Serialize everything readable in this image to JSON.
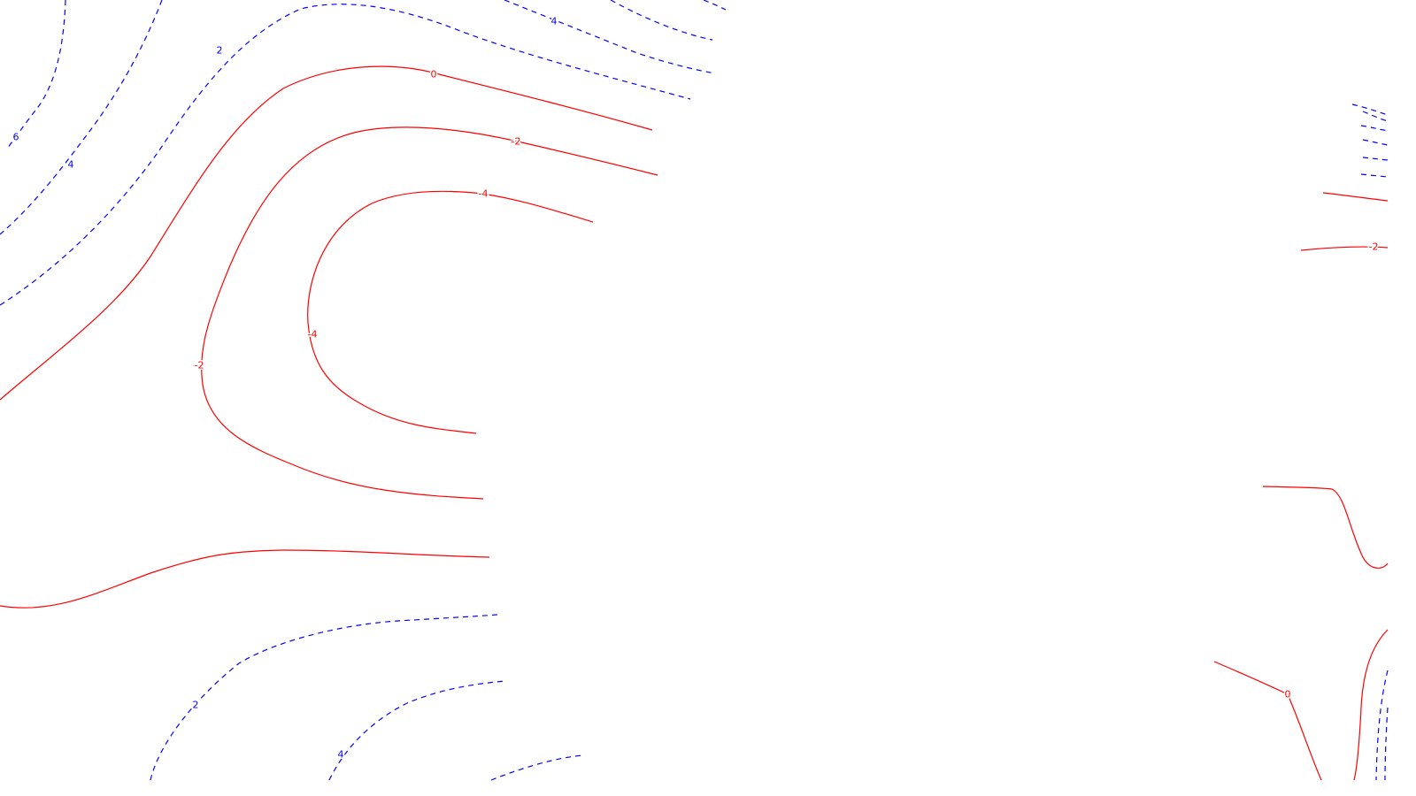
{
  "chart_data": {
    "type": "contour",
    "title": "",
    "xlabel": "",
    "ylabel": "",
    "grid": false,
    "legend": "none",
    "colors": {
      "negative_or_zero": "#ff0000",
      "positive": "#0000ff"
    },
    "line_styles": {
      "negative_or_zero": "solid",
      "positive": "dashed"
    },
    "contour_levels": [
      -4,
      -2,
      0,
      2,
      4,
      6
    ],
    "contour_labels": [
      "6",
      "4",
      "2",
      "4",
      "0",
      "-2",
      "-4",
      "-4",
      "-2",
      "-2",
      "2",
      "4",
      "0"
    ]
  }
}
